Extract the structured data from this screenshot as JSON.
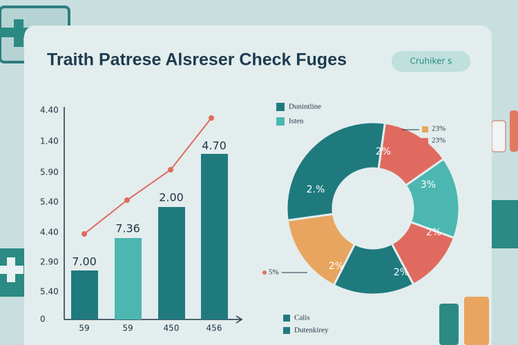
{
  "header": {
    "title": "Traith Patrese Alsreser Check Fuges",
    "button": "Cruhiker s"
  },
  "bar_chart": {
    "y_axis_labels": [
      "4.40",
      "1.40",
      "5.90",
      "5.40",
      "4.40",
      "2.90",
      "5.40",
      "0"
    ],
    "x_axis_labels": [
      "59",
      "59",
      "450",
      "456"
    ],
    "bar_labels": [
      "7.00",
      "7.36",
      "2.00",
      "4.70"
    ]
  },
  "donut_chart": {
    "legend_top": [
      "Dunintline",
      "Isten"
    ],
    "legend_right": [
      "23%",
      "23%"
    ],
    "segment_labels": [
      "2%",
      "3%",
      "2%",
      "2%",
      "2%",
      "2.%"
    ],
    "callout": "5%",
    "legend_bottom": [
      "Calis",
      "Dutenkirey"
    ]
  }
}
